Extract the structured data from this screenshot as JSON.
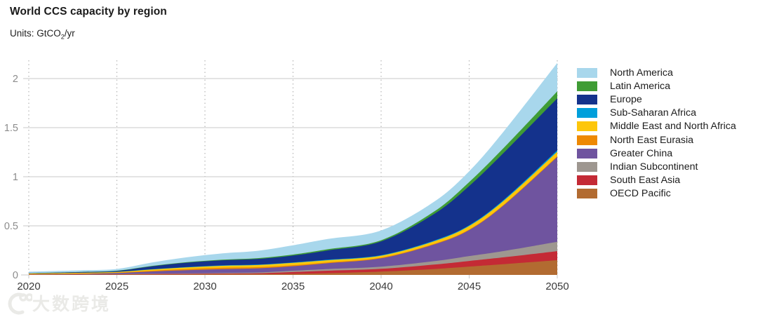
{
  "header": {
    "title": "World CCS capacity by region",
    "units_prefix": "Units: GtCO",
    "units_sub": "2",
    "units_suffix": "/yr"
  },
  "watermark": {
    "text": "大数跨境",
    "logo": "koo-logo"
  },
  "colors": {
    "grid_solid": "#c9c9c9",
    "grid_dotted": "#b5b5b5",
    "y_tick_label": "#8c8c8c",
    "x_tick_label": "#3a3a3a"
  },
  "chart_data": {
    "type": "area",
    "stacked": true,
    "title": "World CCS capacity by region",
    "ylabel": "GtCO2/yr",
    "xlabel": "",
    "xlim": [
      2020,
      2050
    ],
    "ylim": [
      0,
      2.2
    ],
    "x_ticks": [
      2020,
      2025,
      2030,
      2035,
      2040,
      2045,
      2050
    ],
    "x_tick_labels": [
      "2020",
      "2025",
      "2030",
      "2035",
      "2040",
      "2045",
      "2050"
    ],
    "y_ticks": [
      0,
      0.5,
      1,
      1.5,
      2
    ],
    "y_tick_labels": [
      "0",
      "0.5",
      "1",
      "1.5",
      "2"
    ],
    "grid": {
      "horizontal": "solid",
      "vertical": "dotted"
    },
    "legend_position": "right",
    "x": [
      2020,
      2023,
      2025,
      2027,
      2029,
      2031,
      2033,
      2035,
      2037,
      2040,
      2043,
      2045,
      2047,
      2050
    ],
    "series_note": "listed bottom-to-top of the stack; values in GtCO2/yr",
    "series": [
      {
        "name": "OECD Pacific",
        "color": "#b26b31",
        "values": [
          0.002,
          0.003,
          0.004,
          0.005,
          0.006,
          0.008,
          0.009,
          0.011,
          0.018,
          0.034,
          0.06,
          0.085,
          0.11,
          0.15
        ]
      },
      {
        "name": "South East Asia",
        "color": "#c42a35",
        "values": [
          0.001,
          0.002,
          0.003,
          0.004,
          0.005,
          0.006,
          0.008,
          0.018,
          0.025,
          0.028,
          0.045,
          0.057,
          0.07,
          0.092
        ]
      },
      {
        "name": "Indian Subcontinent",
        "color": "#9e9790",
        "values": [
          0.001,
          0.001,
          0.002,
          0.004,
          0.005,
          0.007,
          0.008,
          0.014,
          0.017,
          0.022,
          0.035,
          0.05,
          0.065,
          0.095
        ]
      },
      {
        "name": "Greater China",
        "color": "#6f549f",
        "values": [
          0.002,
          0.005,
          0.01,
          0.022,
          0.032,
          0.038,
          0.042,
          0.046,
          0.06,
          0.085,
          0.17,
          0.265,
          0.47,
          0.865
        ]
      },
      {
        "name": "North East Eurasia",
        "color": "#ee8903",
        "values": [
          0.002,
          0.004,
          0.004,
          0.008,
          0.012,
          0.014,
          0.012,
          0.01,
          0.008,
          0.007,
          0.006,
          0.006,
          0.006,
          0.007
        ]
      },
      {
        "name": "Middle East and North Africa",
        "color": "#fdc60b",
        "values": [
          0.006,
          0.007,
          0.008,
          0.013,
          0.017,
          0.02,
          0.022,
          0.024,
          0.022,
          0.02,
          0.026,
          0.035,
          0.04,
          0.045
        ]
      },
      {
        "name": "Sub-Saharan Africa",
        "color": "#009fdb",
        "values": [
          0.0,
          0.001,
          0.001,
          0.002,
          0.003,
          0.004,
          0.004,
          0.004,
          0.005,
          0.005,
          0.007,
          0.008,
          0.01,
          0.015
        ]
      },
      {
        "name": "Europe",
        "color": "#14328c",
        "values": [
          0.003,
          0.006,
          0.008,
          0.03,
          0.045,
          0.052,
          0.058,
          0.07,
          0.095,
          0.14,
          0.27,
          0.4,
          0.48,
          0.53
        ]
      },
      {
        "name": "Latin America",
        "color": "#3f9c35",
        "values": [
          0.001,
          0.002,
          0.003,
          0.004,
          0.005,
          0.006,
          0.008,
          0.01,
          0.012,
          0.012,
          0.025,
          0.04,
          0.05,
          0.07
        ]
      },
      {
        "name": "North America",
        "color": "#a8d7ec",
        "values": [
          0.015,
          0.016,
          0.018,
          0.035,
          0.05,
          0.065,
          0.075,
          0.095,
          0.105,
          0.1,
          0.1,
          0.11,
          0.17,
          0.29
        ]
      }
    ],
    "legend_order_top_to_bottom": [
      "North America",
      "Latin America",
      "Europe",
      "Sub-Saharan Africa",
      "Middle East and North Africa",
      "North East Eurasia",
      "Greater China",
      "Indian Subcontinent",
      "South East Asia",
      "OECD Pacific"
    ]
  }
}
